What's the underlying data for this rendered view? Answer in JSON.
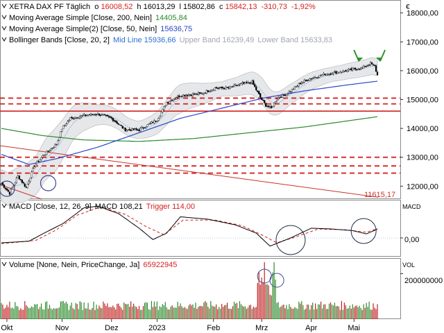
{
  "chart_data": {
    "type": "financial-chart",
    "instrument": "XETRA DAX PF",
    "interval": "Täglich",
    "ohlc_last": {
      "o_label": "o",
      "o": "16008,52",
      "h_label": "h",
      "h": "16013,29",
      "l_label": "l",
      "l": "15802,86",
      "c_label": "c",
      "c": "15842,13",
      "change": "-310,73",
      "change_pct": "-1,92%"
    },
    "indicators": [
      {
        "label": "Moving Average Simple",
        "params": "[Close, 200, Nein]",
        "value": "14405,84",
        "color": "#2a8a2a"
      },
      {
        "label": "Moving Average Simple(2)",
        "params": "[Close, 50, Nein]",
        "value": "15636,75",
        "color": "#2b46c8"
      },
      {
        "label": "Bollinger Bands",
        "params": "[Close, 20, 2]",
        "mid_label": "Mid Line",
        "mid": "15936,66",
        "upper_label": "Upper Band",
        "upper": "16239,49",
        "lower_label": "Lower Band",
        "lower": "15633,83",
        "color": "#4a8ae0"
      }
    ],
    "price_axis": {
      "unit": "€",
      "ticks": [
        "18000,00",
        "17000,00",
        "16000,00",
        "15000,00",
        "14000,00",
        "13000,00",
        "12000,00"
      ],
      "tick_values": [
        18000,
        17000,
        16000,
        15000,
        14000,
        13000,
        12000
      ],
      "range": [
        11550,
        18450
      ]
    },
    "trendline_value_label": "11615,17",
    "horizontal_levels": [
      {
        "value": 15050,
        "style": "dashed"
      },
      {
        "value": 14850,
        "style": "dashed"
      },
      {
        "value": 14600,
        "style": "solid"
      },
      {
        "value": 13000,
        "style": "dashed"
      },
      {
        "value": 12700,
        "style": "dashed"
      },
      {
        "value": 12450,
        "style": "dashed"
      }
    ],
    "x_axis": {
      "labels": [
        "Okt",
        "Nov",
        "Dez",
        "2023",
        "Feb",
        "Mrz",
        "Apr",
        "Mai"
      ],
      "label_day_index": [
        4,
        44,
        80,
        113,
        154,
        189,
        225,
        256
      ]
    },
    "price_keypoints": [
      [
        0,
        12100
      ],
      [
        6,
        11750
      ],
      [
        12,
        12350
      ],
      [
        18,
        11950
      ],
      [
        24,
        12700
      ],
      [
        30,
        13050
      ],
      [
        36,
        13300
      ],
      [
        40,
        13450
      ],
      [
        44,
        14000
      ],
      [
        50,
        14350
      ],
      [
        60,
        14450
      ],
      [
        70,
        14500
      ],
      [
        80,
        14350
      ],
      [
        90,
        13950
      ],
      [
        100,
        13950
      ],
      [
        113,
        14300
      ],
      [
        120,
        14900
      ],
      [
        130,
        15150
      ],
      [
        145,
        15200
      ],
      [
        155,
        15400
      ],
      [
        165,
        15400
      ],
      [
        175,
        15550
      ],
      [
        182,
        15600
      ],
      [
        186,
        15250
      ],
      [
        189,
        15000
      ],
      [
        192,
        14800
      ],
      [
        196,
        14700
      ],
      [
        200,
        15050
      ],
      [
        205,
        15150
      ],
      [
        210,
        15300
      ],
      [
        218,
        15600
      ],
      [
        226,
        15750
      ],
      [
        235,
        15880
      ],
      [
        250,
        16000
      ],
      [
        262,
        16100
      ],
      [
        268,
        16250
      ],
      [
        271,
        16150
      ],
      [
        273,
        15842
      ]
    ],
    "ma200_keypoints": [
      [
        0,
        14000
      ],
      [
        30,
        13750
      ],
      [
        60,
        13600
      ],
      [
        100,
        13550
      ],
      [
        140,
        13650
      ],
      [
        180,
        13850
      ],
      [
        220,
        14050
      ],
      [
        273,
        14406
      ]
    ],
    "ma50_keypoints": [
      [
        0,
        13100
      ],
      [
        20,
        12750
      ],
      [
        40,
        12950
      ],
      [
        70,
        13350
      ],
      [
        100,
        13850
      ],
      [
        130,
        14350
      ],
      [
        160,
        14700
      ],
      [
        190,
        15050
      ],
      [
        220,
        15300
      ],
      [
        250,
        15500
      ],
      [
        273,
        15637
      ]
    ],
    "bollinger_halfwidth_keypoints": [
      [
        0,
        550
      ],
      [
        40,
        750
      ],
      [
        70,
        350
      ],
      [
        100,
        300
      ],
      [
        130,
        500
      ],
      [
        160,
        250
      ],
      [
        190,
        450
      ],
      [
        210,
        350
      ],
      [
        240,
        250
      ],
      [
        273,
        300
      ]
    ],
    "macd": {
      "label": "MACD",
      "params": "[Close, 12, 26, 9]",
      "value_label": "MACD",
      "value": "108,21",
      "trigger_label": "Trigger",
      "trigger": "114,00",
      "axis_label": "MACD",
      "tick": "0,00",
      "range": [
        -230,
        460
      ],
      "macd_keypoints": [
        [
          0,
          -60
        ],
        [
          20,
          -40
        ],
        [
          30,
          50
        ],
        [
          45,
          180
        ],
        [
          60,
          370
        ],
        [
          70,
          390
        ],
        [
          85,
          300
        ],
        [
          100,
          120
        ],
        [
          110,
          -20
        ],
        [
          120,
          60
        ],
        [
          130,
          260
        ],
        [
          150,
          230
        ],
        [
          170,
          160
        ],
        [
          185,
          60
        ],
        [
          195,
          -100
        ],
        [
          210,
          0
        ],
        [
          225,
          120
        ],
        [
          240,
          110
        ],
        [
          255,
          90
        ],
        [
          265,
          50
        ],
        [
          273,
          108
        ]
      ],
      "trigger_keypoints": [
        [
          0,
          -70
        ],
        [
          25,
          -30
        ],
        [
          40,
          100
        ],
        [
          55,
          280
        ],
        [
          72,
          380
        ],
        [
          90,
          290
        ],
        [
          105,
          140
        ],
        [
          118,
          40
        ],
        [
          132,
          220
        ],
        [
          155,
          220
        ],
        [
          175,
          150
        ],
        [
          190,
          30
        ],
        [
          200,
          -60
        ],
        [
          215,
          20
        ],
        [
          230,
          110
        ],
        [
          250,
          100
        ],
        [
          265,
          70
        ],
        [
          273,
          114
        ]
      ]
    },
    "volume": {
      "label": "Volume",
      "params": "[None, Nein, PriceChange, Ja]",
      "value": "65922945",
      "axis_label": "VOL",
      "tick": "200000000",
      "tick_value": 200000000,
      "max": 265000000
    },
    "circle_annotations_day_index": [
      4,
      34,
      207,
      262
    ],
    "volume_circles_day_index": [
      191,
      198
    ],
    "arrow_annotations_day_index": [
      261,
      268
    ],
    "colors": {
      "up": "#ffffff",
      "down": "#000000",
      "wick": "#000000",
      "ma200": "#2a8a2a",
      "ma50": "#2b46c8",
      "bollinger": "#4a8ae0",
      "bollinger_fill": "#e5e7e9",
      "level": "#d62020",
      "trendline": "#c8322a",
      "change": "#d62020",
      "macd": "#000000",
      "trigger": "#d62020",
      "volume_down": "#c02020",
      "volume_up": "#2a8a2a",
      "annotation": "#3c4a8a",
      "arrow": "#2f8f2f"
    }
  }
}
